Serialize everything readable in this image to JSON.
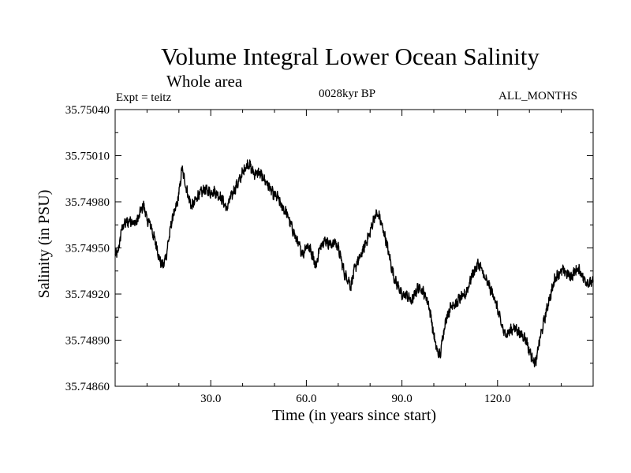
{
  "chart_data": {
    "type": "line",
    "title": "Volume Integral Lower Ocean Salinity",
    "subtitle": "Whole area",
    "experiment_label": "Expt = teitz",
    "period_label": "0028kyr BP",
    "months_label": "ALL_MONTHS",
    "xlabel": "Time (in years since start)",
    "ylabel": "Salinity (in PSU)",
    "xlim": [
      0,
      150
    ],
    "ylim": [
      35.7486,
      35.7504
    ],
    "x_ticks": [
      30,
      60,
      90,
      120
    ],
    "x_tick_labels": [
      "30.0",
      "60.0",
      "90.0",
      "120.0"
    ],
    "y_ticks": [
      35.7486,
      35.7489,
      35.7492,
      35.7495,
      35.7498,
      35.7501,
      35.7504
    ],
    "y_tick_labels": [
      "35.74860",
      "35.74890",
      "35.74920",
      "35.74950",
      "35.74980",
      "35.75010",
      "35.75040"
    ],
    "grid": false,
    "series": [
      {
        "name": "salinity",
        "sampling": "monthly (trend approximated from annual anchors)",
        "x": [
          0,
          1,
          2,
          3,
          4,
          5,
          6,
          7,
          8,
          9,
          10,
          11,
          12,
          13,
          14,
          15,
          16,
          17,
          18,
          19,
          20,
          21,
          22,
          23,
          24,
          25,
          26,
          27,
          28,
          29,
          30,
          31,
          32,
          33,
          34,
          35,
          36,
          37,
          38,
          39,
          40,
          41,
          42,
          43,
          44,
          45,
          46,
          47,
          48,
          49,
          50,
          51,
          52,
          53,
          54,
          55,
          56,
          57,
          58,
          59,
          60,
          61,
          62,
          63,
          64,
          65,
          66,
          67,
          68,
          69,
          70,
          71,
          72,
          73,
          74,
          75,
          76,
          77,
          78,
          79,
          80,
          81,
          82,
          83,
          84,
          85,
          86,
          87,
          88,
          89,
          90,
          91,
          92,
          93,
          94,
          95,
          96,
          97,
          98,
          99,
          100,
          101,
          102,
          103,
          104,
          105,
          106,
          107,
          108,
          109,
          110,
          111,
          112,
          113,
          114,
          115,
          116,
          117,
          118,
          119,
          120,
          121,
          122,
          123,
          124,
          125,
          126,
          127,
          128,
          129,
          130,
          131,
          132,
          133,
          134,
          135,
          136,
          137,
          138,
          139,
          140,
          141,
          142,
          143,
          144,
          145,
          146,
          147,
          148,
          149,
          150
        ],
        "values": [
          35.74945,
          35.74948,
          35.74962,
          35.74966,
          35.74967,
          35.74968,
          35.74966,
          35.74968,
          35.74974,
          35.74978,
          35.74968,
          35.74966,
          35.74958,
          35.74951,
          35.74942,
          35.74938,
          35.74945,
          35.74958,
          35.7497,
          35.74975,
          35.74985,
          35.75002,
          35.74992,
          35.74983,
          35.74977,
          35.7498,
          35.74984,
          35.74986,
          35.74988,
          35.74987,
          35.74986,
          35.74987,
          35.74985,
          35.74983,
          35.7498,
          35.74975,
          35.74982,
          35.74986,
          35.7499,
          35.74994,
          35.74999,
          35.75003,
          35.75005,
          35.75,
          35.74998,
          35.74999,
          35.74997,
          35.74994,
          35.74991,
          35.74987,
          35.74984,
          35.74983,
          35.74978,
          35.74975,
          35.74972,
          35.74966,
          35.7496,
          35.74955,
          35.7495,
          35.74946,
          35.74952,
          35.7495,
          35.74945,
          35.74938,
          35.74948,
          35.74954,
          35.74955,
          35.74953,
          35.74952,
          35.74954,
          35.7495,
          35.74942,
          35.74933,
          35.7493,
          35.74925,
          35.74935,
          35.74941,
          35.74944,
          35.7495,
          35.74955,
          35.7496,
          35.74968,
          35.74972,
          35.7497,
          35.74962,
          35.74955,
          35.74945,
          35.74935,
          35.74928,
          35.74925,
          35.74918,
          35.7492,
          35.74918,
          35.74915,
          35.7492,
          35.74924,
          35.74924,
          35.7492,
          35.74916,
          35.74907,
          35.74893,
          35.74883,
          35.7488,
          35.74895,
          35.74905,
          35.7491,
          35.74914,
          35.74913,
          35.74917,
          35.74918,
          35.7492,
          35.74926,
          35.74932,
          35.74936,
          35.7494,
          35.74936,
          35.7493,
          35.74927,
          35.74922,
          35.74918,
          35.7491,
          35.74902,
          35.74895,
          35.74894,
          35.74896,
          35.74898,
          35.74897,
          35.74894,
          35.74893,
          35.7489,
          35.74883,
          35.74878,
          35.74875,
          35.74888,
          35.74897,
          35.74906,
          35.74915,
          35.74922,
          35.7493,
          35.74933,
          35.74935,
          35.74935,
          35.74933,
          35.74931,
          35.74934,
          35.74936,
          35.74935,
          35.7493,
          35.74928,
          35.74927,
          35.74928
        ]
      }
    ]
  }
}
